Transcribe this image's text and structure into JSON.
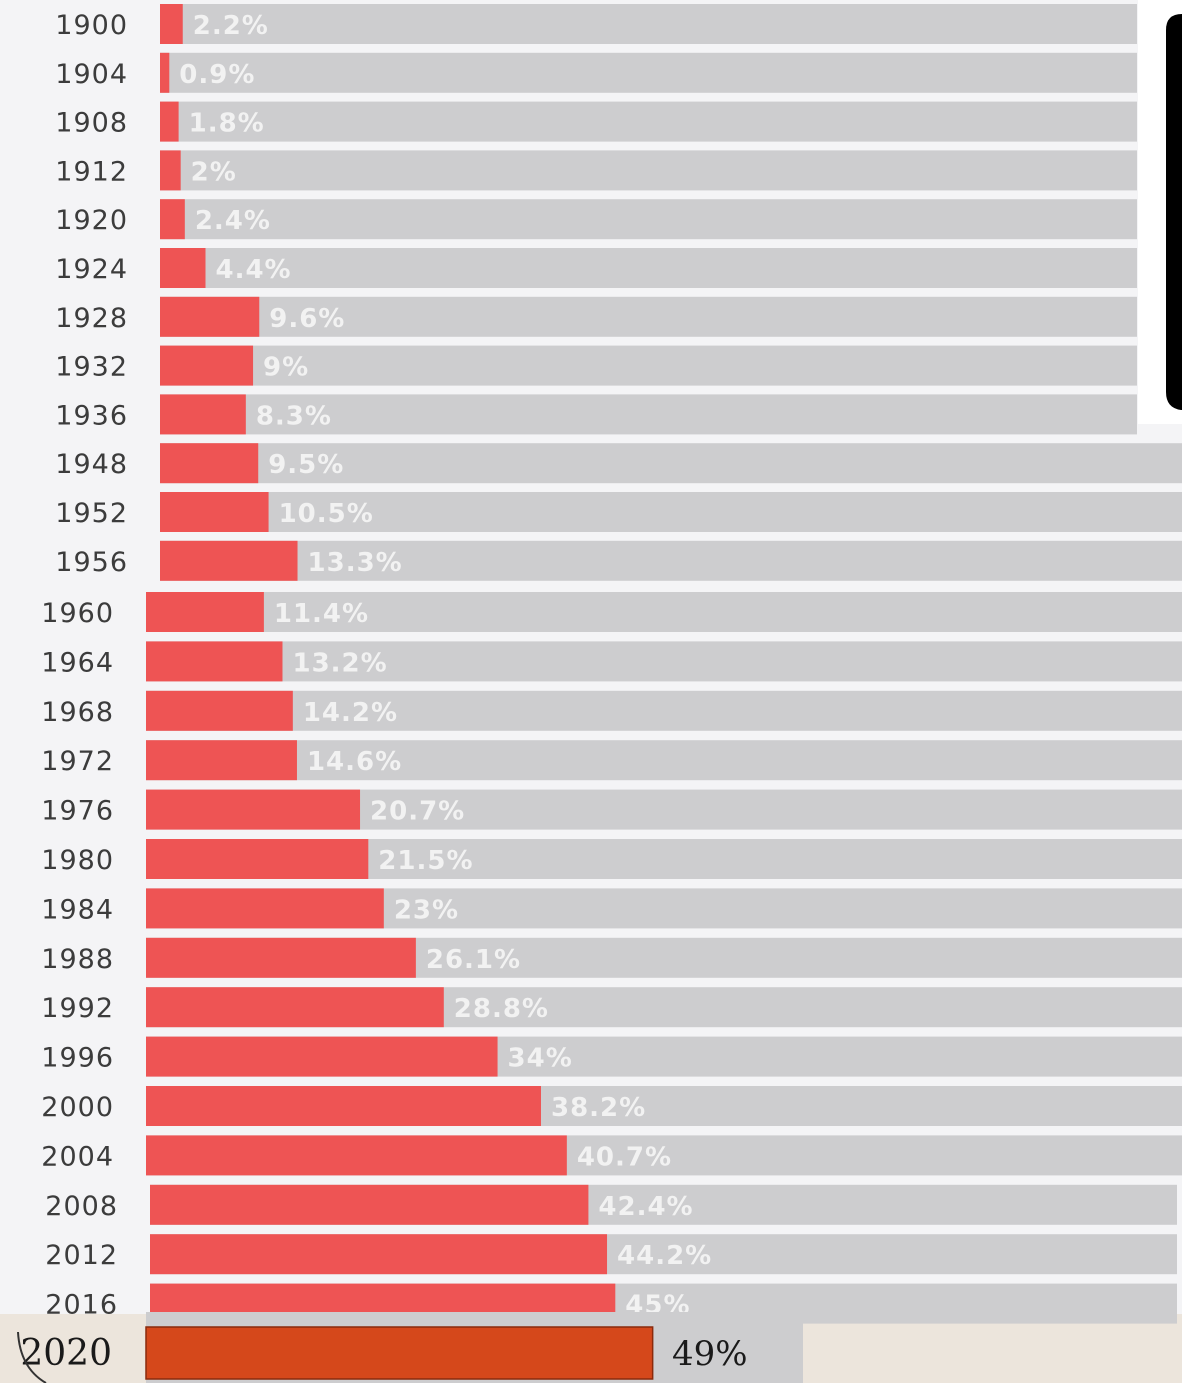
{
  "chart_data": {
    "type": "bar",
    "orientation": "horizontal",
    "categories": [
      "1900",
      "1904",
      "1908",
      "1912",
      "1920",
      "1924",
      "1928",
      "1932",
      "1936",
      "1948",
      "1952",
      "1956",
      "1960",
      "1964",
      "1968",
      "1972",
      "1976",
      "1980",
      "1984",
      "1988",
      "1992",
      "1996",
      "2000",
      "2004",
      "2008",
      "2012",
      "2016",
      "2020"
    ],
    "values": [
      2.2,
      0.9,
      1.8,
      2,
      2.4,
      4.4,
      9.6,
      9,
      8.3,
      9.5,
      10.5,
      13.3,
      11.4,
      13.2,
      14.2,
      14.6,
      20.7,
      21.5,
      23,
      26.1,
      28.8,
      34,
      38.2,
      40.7,
      42.4,
      44.2,
      45,
      49
    ],
    "value_labels": [
      "2.2%",
      "0.9%",
      "1.8%",
      "2%",
      "2.4%",
      "4.4%",
      "9.6%",
      "9%",
      "8.3%",
      "9.5%",
      "10.5%",
      "13.3%",
      "11.4%",
      "13.2%",
      "14.2%",
      "14.6%",
      "20.7%",
      "21.5%",
      "23%",
      "26.1%",
      "28.8%",
      "34%",
      "38.2%",
      "40.7%",
      "42.4%",
      "44.2%",
      "45%",
      "49%"
    ],
    "xlim": [
      0,
      100
    ],
    "title": "",
    "xlabel": "",
    "ylabel": "",
    "grid": false,
    "legend": "none",
    "colors": {
      "bar": "#ee5454",
      "highlight_bar": "#d5481b",
      "track": "#cdcdcf",
      "last_row_background": "#ece5dc",
      "background": "#f4f4f6",
      "overlay_panel": "#000000"
    }
  }
}
